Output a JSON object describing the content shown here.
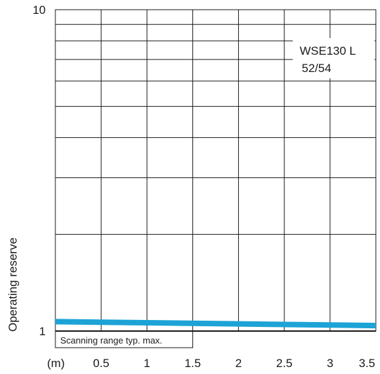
{
  "chart_data": {
    "type": "line",
    "xlabel": "",
    "ylabel": "Operating reserve",
    "x_unit_label": "(m)",
    "x_ticks": [
      "0.5",
      "1",
      "1.5",
      "2",
      "2.5",
      "3",
      "3.5"
    ],
    "y_ticks": [
      "1",
      "10"
    ],
    "y_scale": "log",
    "xlim": [
      0,
      3.5
    ],
    "ylim": [
      1,
      10
    ],
    "grid": true,
    "annotation": "WSE130 L\n52/54",
    "annotation_line1": "WSE130 L",
    "annotation_line2": "52/54",
    "scanning_range_label": "Scanning range typ. max.",
    "scanning_range_max": 1.5,
    "series": [
      {
        "color": "#1da3d6",
        "x": [
          0,
          3.5
        ],
        "y": [
          1.07,
          1.04
        ]
      }
    ]
  }
}
